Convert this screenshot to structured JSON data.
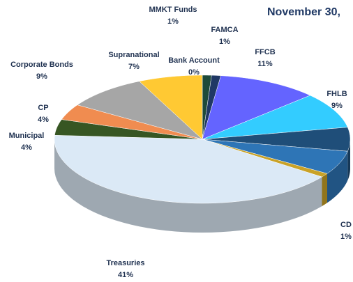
{
  "chart_data": {
    "type": "pie3d",
    "title": "November 30,",
    "categories": [
      "MMKT Funds",
      "FAMCA",
      "FFCB",
      "FHLB",
      null,
      null,
      "CD",
      "Treasuries",
      "Municipal",
      "CP",
      "Corporate Bonds",
      "Supranational",
      "Bank Account"
    ],
    "values": [
      1,
      1,
      11,
      9,
      6,
      6,
      1,
      41,
      4,
      4,
      9,
      7,
      0
    ],
    "value_labels": [
      "1%",
      "1%",
      "11%",
      "9%",
      null,
      null,
      "1%",
      "41%",
      "4%",
      "4%",
      "9%",
      "7%",
      "0%"
    ],
    "colors": [
      "#1e4a3a",
      "#1f3864",
      "#6464ff",
      "#33ccff",
      "#1f4e79",
      "#2e75b6",
      "#c9a227",
      "#dbe9f6",
      "#375623",
      "#f08c50",
      "#a6a6a6",
      "#ffc933",
      "#fff2a0"
    ]
  }
}
